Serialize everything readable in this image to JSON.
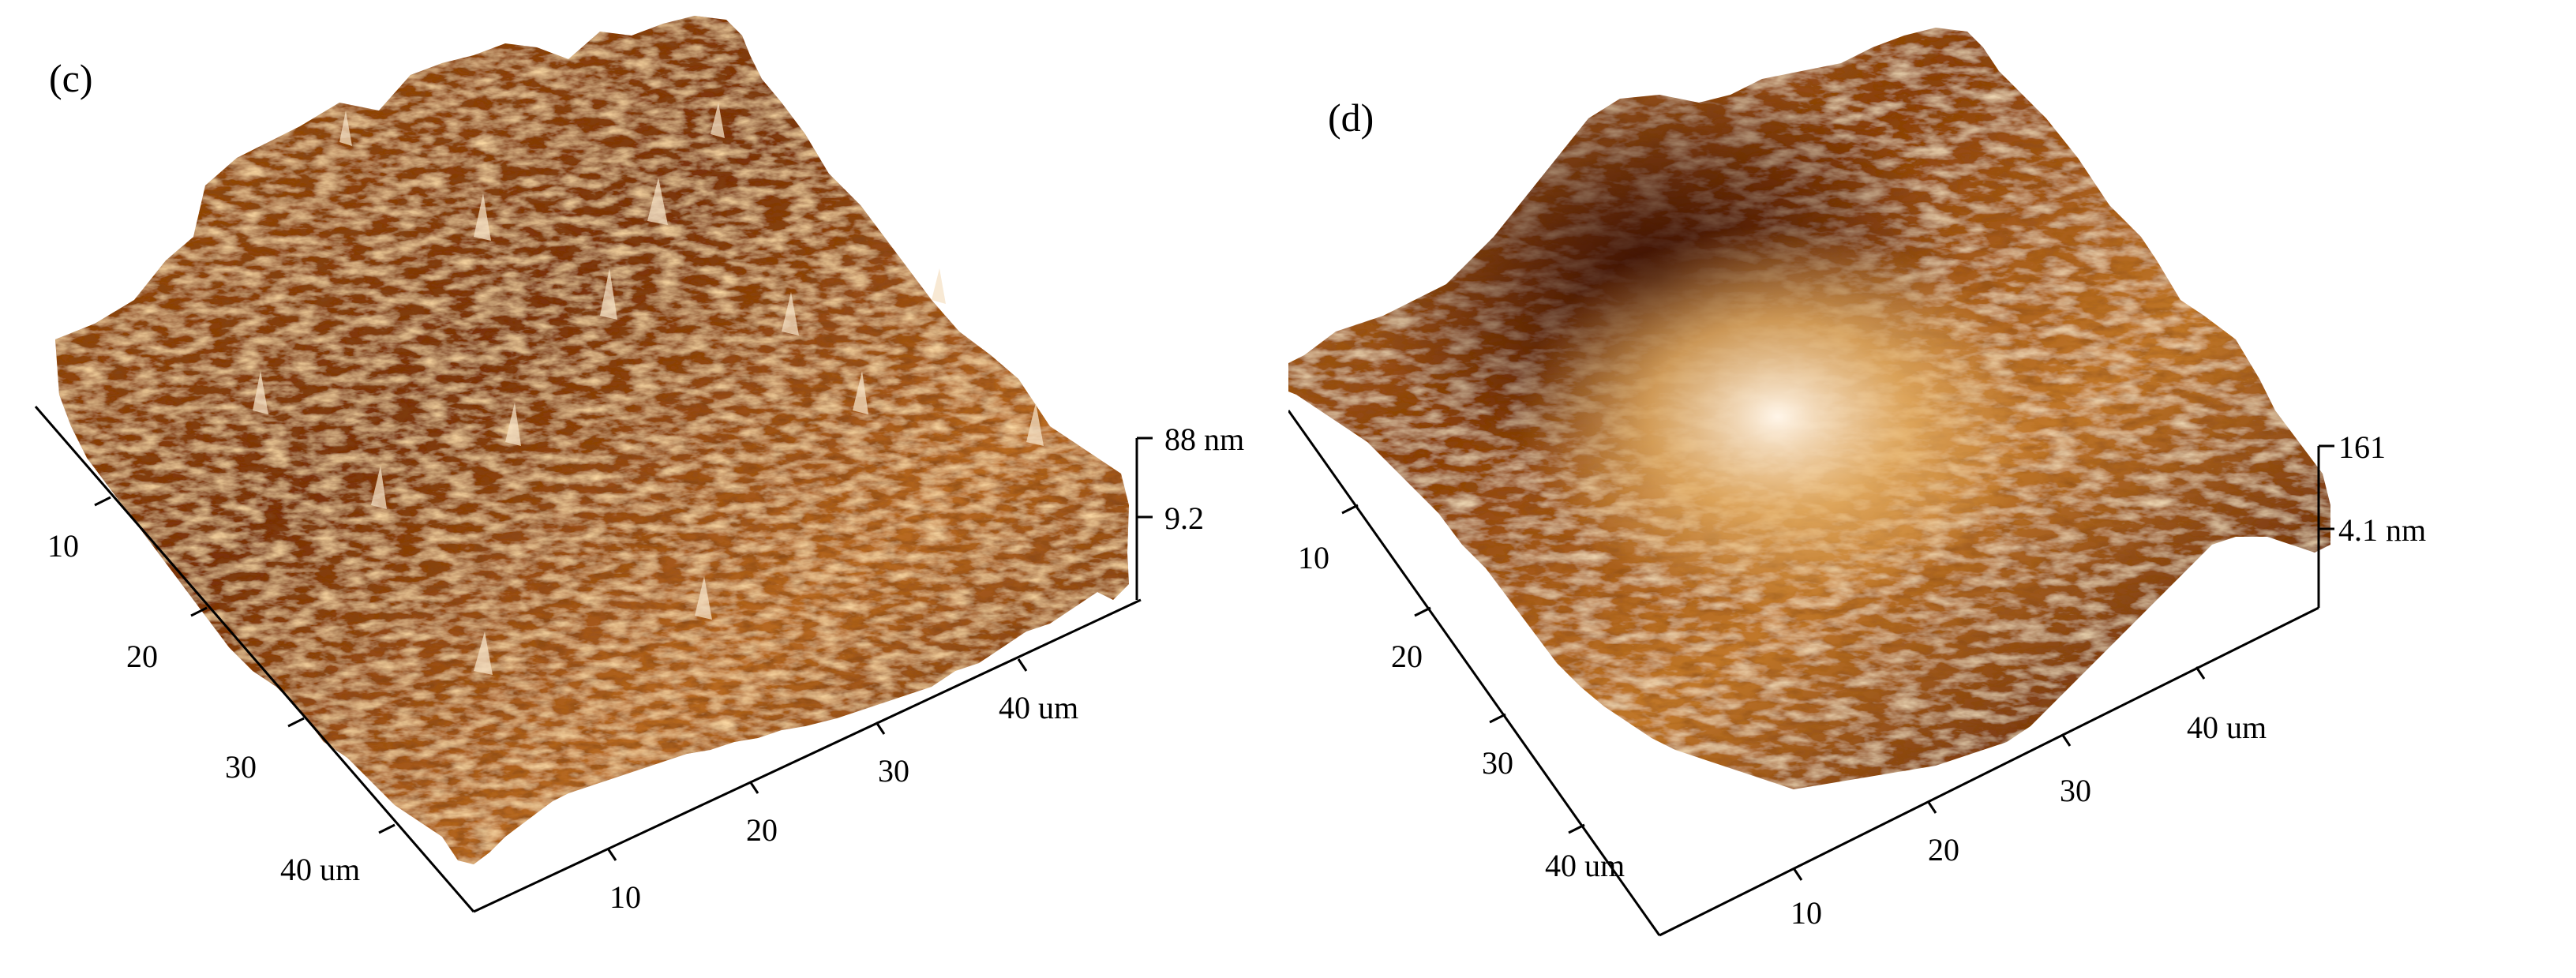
{
  "panels": [
    {
      "label": "(c)",
      "z_max": "88 nm",
      "z_mid": "9.2",
      "y_ticks": [
        "10",
        "20",
        "30",
        "40 um"
      ],
      "x_ticks": [
        "10",
        "20",
        "30",
        "40 um"
      ],
      "surface": "rough, densely spiked"
    },
    {
      "label": "(d)",
      "z_max": "161",
      "z_mid": "4.1 nm",
      "y_ticks": [
        "10",
        "20",
        "30",
        "40 um"
      ],
      "x_ticks": [
        "10",
        "20",
        "30",
        "40 um"
      ],
      "surface": "rolling hills with a dark central depression"
    }
  ],
  "colors": {
    "dark": "#3a0f02",
    "mid": "#9a4a10",
    "light": "#e4ac64",
    "highlight": "#fbf1e4"
  }
}
